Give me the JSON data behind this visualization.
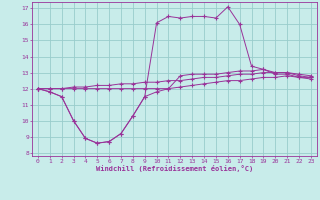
{
  "xlabel": "Windchill (Refroidissement éolien,°C)",
  "bg_color": "#c8ecea",
  "line_color": "#993399",
  "grid_color": "#99cccc",
  "xlim": [
    -0.5,
    23.5
  ],
  "ylim": [
    7.8,
    17.4
  ],
  "yticks": [
    8,
    9,
    10,
    11,
    12,
    13,
    14,
    15,
    16,
    17
  ],
  "xticks": [
    0,
    1,
    2,
    3,
    4,
    5,
    6,
    7,
    8,
    9,
    10,
    11,
    12,
    13,
    14,
    15,
    16,
    17,
    18,
    19,
    20,
    21,
    22,
    23
  ],
  "line1_x": [
    0,
    1,
    2,
    3,
    4,
    5,
    6,
    7,
    8,
    9,
    10,
    11,
    12,
    13,
    14,
    15,
    16,
    17,
    18,
    19,
    20,
    21,
    22,
    23
  ],
  "line1_y": [
    12.0,
    11.8,
    11.5,
    10.0,
    8.9,
    8.6,
    8.7,
    9.2,
    10.3,
    11.5,
    16.1,
    16.5,
    16.4,
    16.5,
    16.5,
    16.4,
    17.1,
    16.0,
    13.4,
    13.2,
    12.9,
    12.9,
    12.7,
    12.6
  ],
  "line2_x": [
    0,
    1,
    2,
    3,
    4,
    5,
    6,
    7,
    8,
    9,
    10,
    11,
    12,
    13,
    14,
    15,
    16,
    17,
    18,
    19,
    20,
    21,
    22,
    23
  ],
  "line2_y": [
    12.0,
    11.8,
    11.5,
    10.0,
    8.9,
    8.6,
    8.7,
    9.2,
    10.3,
    11.5,
    11.8,
    12.0,
    12.8,
    12.9,
    12.9,
    12.9,
    13.0,
    13.1,
    13.1,
    13.2,
    13.0,
    13.0,
    12.8,
    12.7
  ],
  "line3_x": [
    0,
    1,
    2,
    3,
    4,
    5,
    6,
    7,
    8,
    9,
    10,
    11,
    12,
    13,
    14,
    15,
    16,
    17,
    18,
    19,
    20,
    21,
    22,
    23
  ],
  "line3_y": [
    12.0,
    12.0,
    12.0,
    12.1,
    12.1,
    12.2,
    12.2,
    12.3,
    12.3,
    12.4,
    12.4,
    12.5,
    12.5,
    12.6,
    12.7,
    12.7,
    12.8,
    12.9,
    12.9,
    13.0,
    13.0,
    13.0,
    12.9,
    12.8
  ],
  "line4_x": [
    0,
    1,
    2,
    3,
    4,
    5,
    6,
    7,
    8,
    9,
    10,
    11,
    12,
    13,
    14,
    15,
    16,
    17,
    18,
    19,
    20,
    21,
    22,
    23
  ],
  "line4_y": [
    12.0,
    12.0,
    12.0,
    12.0,
    12.0,
    12.0,
    12.0,
    12.0,
    12.0,
    12.0,
    12.0,
    12.0,
    12.1,
    12.2,
    12.3,
    12.4,
    12.5,
    12.5,
    12.6,
    12.7,
    12.7,
    12.8,
    12.7,
    12.7
  ]
}
